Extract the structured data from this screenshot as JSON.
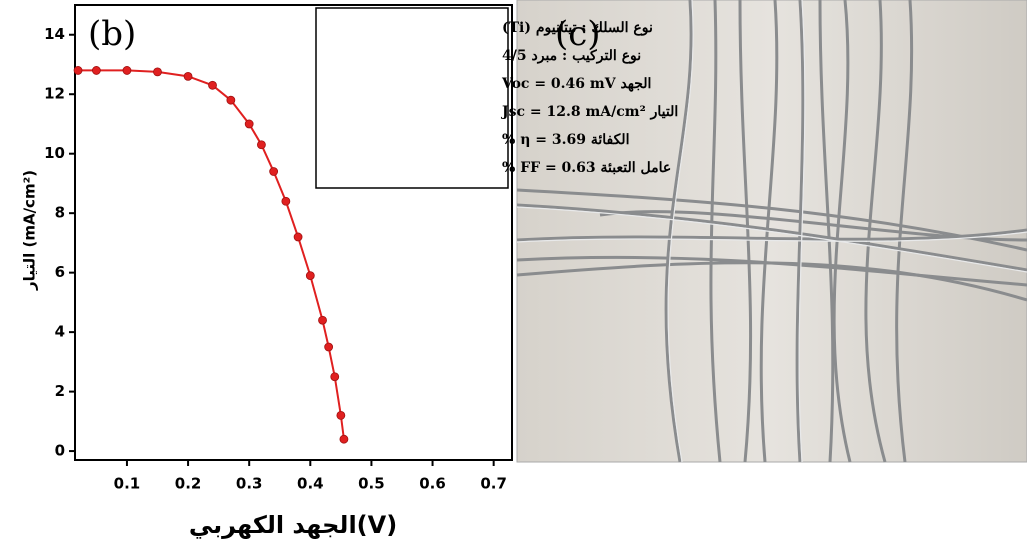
{
  "chart_data": {
    "type": "line",
    "panel_labels": [
      "(b)",
      "(c)"
    ],
    "x_label": "الجهد الكهربي(V)",
    "y_label": "التيار (mA/cm²)",
    "annotations": [
      "نوع السلك : تيتانيوم (Ti)",
      "نوع التركيب : مبرد 4/5",
      "الجهد Voc = 0.46 mV",
      "التيار Jsc = 12.8 mA/cm²",
      "الكفائة η = 3.69 %",
      "عامل التعبئة FF = 0.63 %"
    ],
    "x": [
      0.02,
      0.05,
      0.1,
      0.15,
      0.2,
      0.24,
      0.27,
      0.3,
      0.32,
      0.34,
      0.36,
      0.38,
      0.4,
      0.42,
      0.43,
      0.44,
      0.45,
      0.455
    ],
    "series": [
      {
        "color": "#e02020",
        "values": [
          12.8,
          12.8,
          12.8,
          12.75,
          12.6,
          12.3,
          11.8,
          11.0,
          10.3,
          9.4,
          8.4,
          7.2,
          5.9,
          4.4,
          3.5,
          2.5,
          1.2,
          0.4
        ]
      }
    ],
    "xlim": [
      0.015,
      0.73
    ],
    "ylim": [
      -0.3,
      15
    ],
    "xticks": [
      0.1,
      0.2,
      0.3,
      0.4,
      0.5,
      0.6,
      0.7
    ],
    "yticks": [
      0,
      2,
      4,
      6,
      8,
      10,
      12,
      14
    ]
  }
}
